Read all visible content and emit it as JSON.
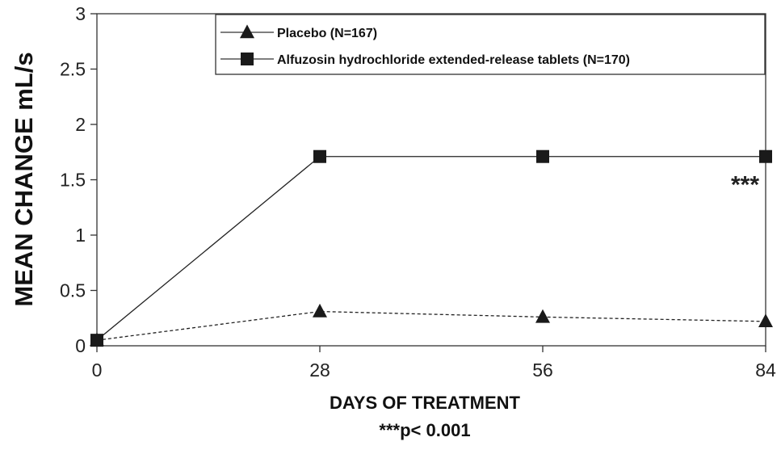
{
  "chart_data": {
    "type": "line",
    "title": "",
    "xlabel": "DAYS OF TREATMENT",
    "ylabel": "MEAN CHANGE mL/s",
    "footnote": "***p< 0.001",
    "x": [
      0,
      28,
      56,
      84
    ],
    "x_ticks": [
      "0",
      "28",
      "56",
      "84"
    ],
    "y_ticks": [
      "0",
      "0.5",
      "1",
      "1.5",
      "2",
      "2.5",
      "3"
    ],
    "xlim": [
      0,
      84
    ],
    "ylim": [
      0,
      3
    ],
    "grid": false,
    "legend_position": "top-right",
    "series": [
      {
        "name": "Placebo (N=167)",
        "values": [
          0.05,
          0.31,
          0.26,
          0.22
        ],
        "marker": "triangle",
        "line_style": "dashed",
        "color": "#222222"
      },
      {
        "name": "Alfuzosin hydrochloride extended-release tablets (N=170)",
        "values": [
          0.05,
          1.71,
          1.71,
          1.71
        ],
        "marker": "square",
        "line_style": "solid",
        "color": "#222222"
      }
    ],
    "annotations": [
      {
        "text": "***",
        "x": 84,
        "y": 1.5
      }
    ]
  }
}
